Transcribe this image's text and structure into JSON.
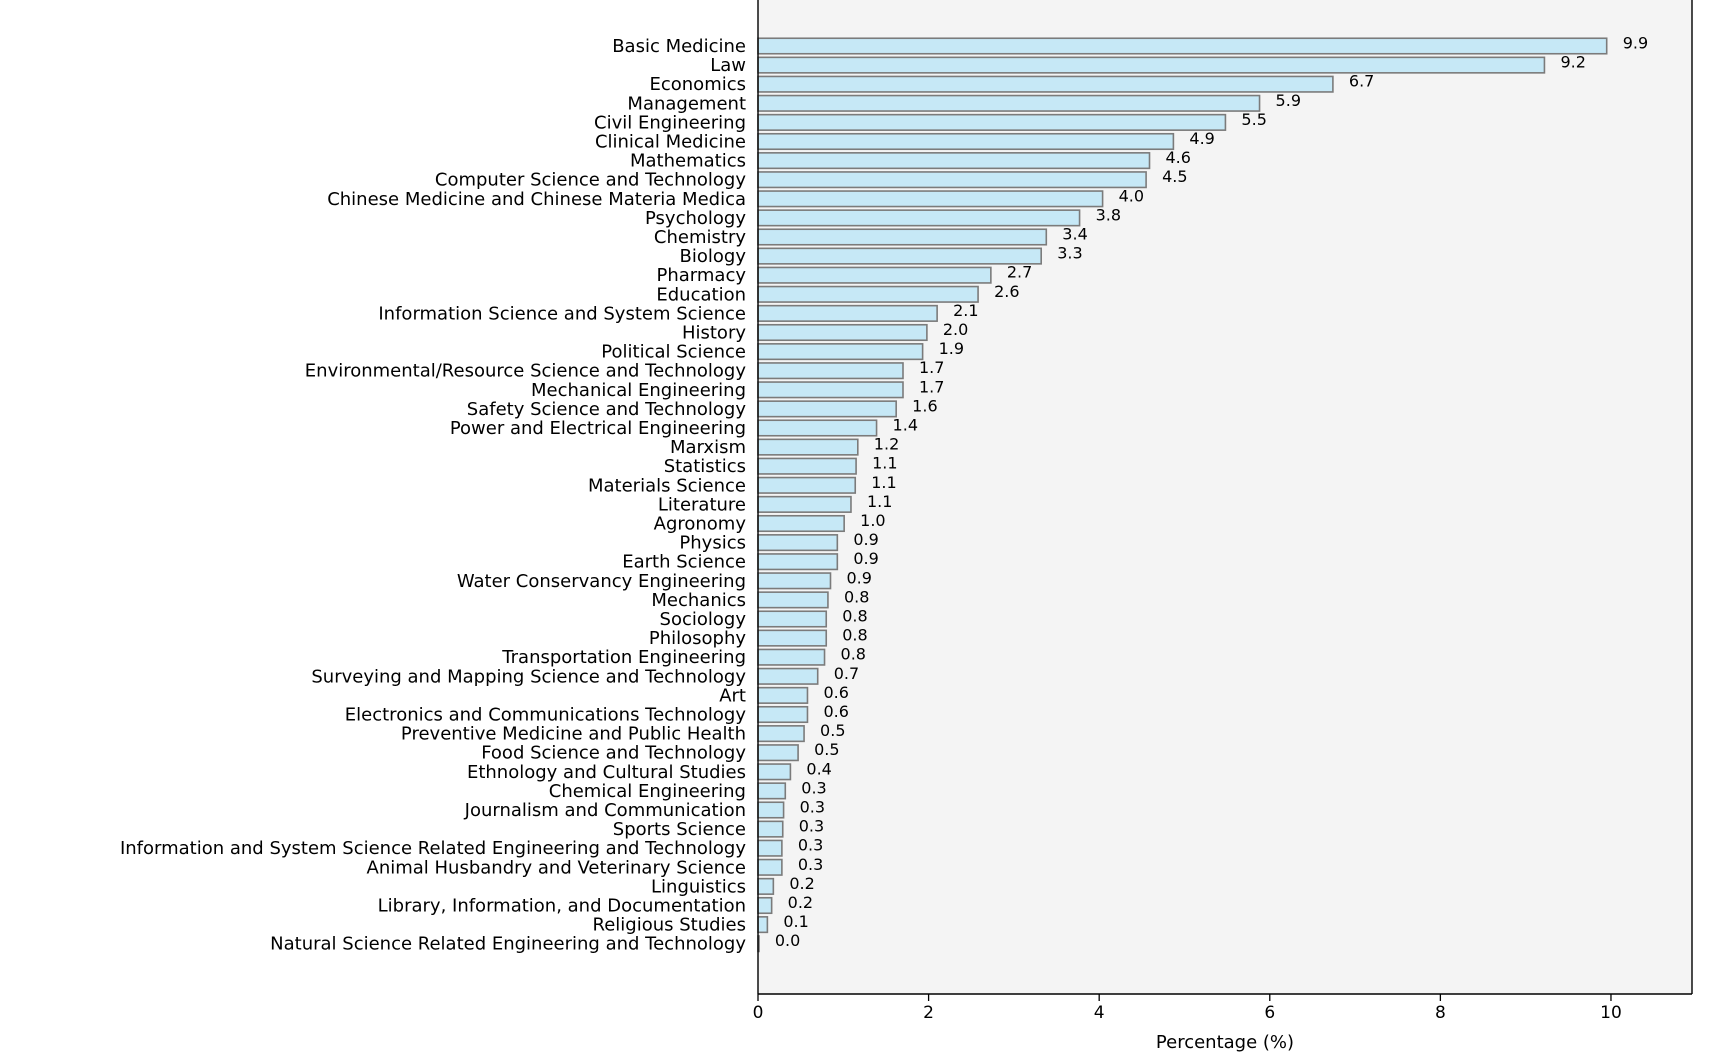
{
  "colors": {
    "bar_fill": "#c6e8f6",
    "bar_edge": "#7b7b7b",
    "plot_background": "#f4f4f4",
    "axis": "#000000"
  },
  "chart_data": {
    "type": "bar",
    "orientation": "horizontal",
    "title": "",
    "xlabel": "Percentage (%)",
    "ylabel": "",
    "xlim": [
      0,
      10.95
    ],
    "xticks": [
      0,
      2,
      4,
      6,
      8,
      10
    ],
    "grid": false,
    "legend": "none",
    "categories": [
      "Basic Medicine",
      "Law",
      "Economics",
      "Management",
      "Civil Engineering",
      "Clinical Medicine",
      "Mathematics",
      "Computer Science and Technology",
      "Chinese Medicine and Chinese Materia Medica",
      "Psychology",
      "Chemistry",
      "Biology",
      "Pharmacy",
      "Education",
      "Information Science and System Science",
      "History",
      "Political Science",
      "Environmental/Resource Science and Technology",
      "Mechanical Engineering",
      "Safety Science and Technology",
      "Power and Electrical Engineering",
      "Marxism",
      "Statistics",
      "Materials Science",
      "Literature",
      "Agronomy",
      "Physics",
      "Earth Science",
      "Water Conservancy Engineering",
      "Mechanics",
      "Sociology",
      "Philosophy",
      "Transportation Engineering",
      "Surveying and Mapping Science and Technology",
      "Art",
      "Electronics and Communications Technology",
      "Preventive Medicine and Public Health",
      "Food Science and Technology",
      "Ethnology and Cultural Studies",
      "Chemical Engineering",
      "Journalism and Communication",
      "Sports Science",
      "Information and System Science Related Engineering and Technology",
      "Animal Husbandry and Veterinary Science",
      "Linguistics",
      "Library, Information, and Documentation",
      "Religious Studies",
      "Natural Science Related Engineering and Technology"
    ],
    "values": [
      9.95,
      9.22,
      6.74,
      5.88,
      5.48,
      4.87,
      4.59,
      4.55,
      4.04,
      3.77,
      3.38,
      3.32,
      2.73,
      2.58,
      2.1,
      1.98,
      1.93,
      1.7,
      1.7,
      1.62,
      1.39,
      1.17,
      1.15,
      1.14,
      1.09,
      1.01,
      0.93,
      0.93,
      0.85,
      0.82,
      0.8,
      0.8,
      0.78,
      0.7,
      0.58,
      0.58,
      0.54,
      0.47,
      0.38,
      0.32,
      0.3,
      0.29,
      0.28,
      0.28,
      0.18,
      0.16,
      0.11,
      0.01
    ],
    "value_labels": [
      "9.9",
      "9.2",
      "6.7",
      "5.9",
      "5.5",
      "4.9",
      "4.6",
      "4.5",
      "4.0",
      "3.8",
      "3.4",
      "3.3",
      "2.7",
      "2.6",
      "2.1",
      "2.0",
      "1.9",
      "1.7",
      "1.7",
      "1.6",
      "1.4",
      "1.2",
      "1.1",
      "1.1",
      "1.1",
      "1.0",
      "0.9",
      "0.9",
      "0.9",
      "0.8",
      "0.8",
      "0.8",
      "0.8",
      "0.7",
      "0.6",
      "0.6",
      "0.5",
      "0.5",
      "0.4",
      "0.3",
      "0.3",
      "0.3",
      "0.3",
      "0.3",
      "0.2",
      "0.2",
      "0.1",
      "0.0"
    ]
  }
}
